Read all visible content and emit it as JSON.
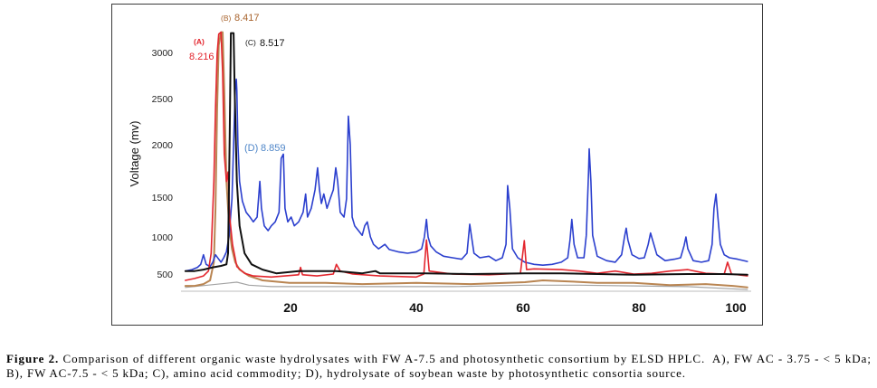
{
  "figure": {
    "caption": {
      "label": "Figure 2.",
      "line1": " Comparison of different organic waste hydrolysates with FW A-7.5 and photosynthetic consortium by ELSD HPLC.  A), FW AC - 3.75 - < 5 kDa;",
      "line2": "B), FW AC-7.5 - < 5 kDa; C), amino acid commodity; D), hydrolysate of soybean waste by photosynthetic consortia source."
    }
  },
  "chart_data": {
    "type": "line",
    "ylabel": "Voltage (mv)",
    "x_ticks": [
      20,
      40,
      60,
      80,
      100
    ],
    "y_ticks": [
      500,
      1000,
      1500,
      2000,
      2500,
      3000
    ],
    "xlim": [
      0,
      102.4
    ],
    "ylim": [
      270,
      3220
    ],
    "grid": false,
    "legend": "none",
    "series": [
      {
        "color": "#a3a3a3",
        "points": [
          [
            0.8,
            320
          ],
          [
            10.2,
            390
          ],
          [
            12.4,
            350
          ],
          [
            16.5,
            330
          ],
          [
            31.4,
            330
          ],
          [
            46.8,
            330
          ],
          [
            60.3,
            350
          ],
          [
            69.7,
            350
          ],
          [
            79.1,
            340
          ],
          [
            90.1,
            330
          ],
          [
            102.4,
            290
          ]
        ]
      },
      {
        "name": "(B)",
        "peak_label": "8.417",
        "color": "#b98552",
        "label_color": "#a9652f",
        "points": [
          [
            0.8,
            340
          ],
          [
            2.5,
            340
          ],
          [
            4.1,
            365
          ],
          [
            5.3,
            415
          ],
          [
            6.0,
            660
          ],
          [
            6.3,
            1360
          ],
          [
            6.6,
            2390
          ],
          [
            6.9,
            3080
          ],
          [
            7.3,
            3220
          ],
          [
            7.6,
            3220
          ],
          [
            7.9,
            2590
          ],
          [
            8.3,
            1650
          ],
          [
            8.8,
            1140
          ],
          [
            9.3,
            840
          ],
          [
            9.9,
            660
          ],
          [
            10.7,
            560
          ],
          [
            12.4,
            475
          ],
          [
            14.9,
            415
          ],
          [
            19.8,
            380
          ],
          [
            25.6,
            380
          ],
          [
            31.4,
            365
          ],
          [
            40.0,
            380
          ],
          [
            50.2,
            365
          ],
          [
            60.3,
            390
          ],
          [
            63.4,
            415
          ],
          [
            68.1,
            400
          ],
          [
            72.8,
            380
          ],
          [
            79.1,
            380
          ],
          [
            86.4,
            350
          ],
          [
            93.8,
            365
          ],
          [
            99.4,
            340
          ],
          [
            102.4,
            320
          ]
        ]
      },
      {
        "name": "(D)",
        "peak_label": "8.859",
        "color": "#2b3fce",
        "label_color": "#4f86c8",
        "points": [
          [
            0.8,
            540
          ],
          [
            2.0,
            560
          ],
          [
            3.0,
            590
          ],
          [
            3.6,
            630
          ],
          [
            4.1,
            760
          ],
          [
            4.6,
            630
          ],
          [
            5.3,
            600
          ],
          [
            5.8,
            660
          ],
          [
            6.3,
            760
          ],
          [
            6.8,
            710
          ],
          [
            7.3,
            660
          ],
          [
            7.8,
            720
          ],
          [
            8.3,
            800
          ],
          [
            8.8,
            1020
          ],
          [
            9.3,
            1480
          ],
          [
            9.6,
            2000
          ],
          [
            9.9,
            2590
          ],
          [
            10.1,
            2710
          ],
          [
            10.2,
            2590
          ],
          [
            10.4,
            2000
          ],
          [
            10.7,
            1650
          ],
          [
            11.2,
            1450
          ],
          [
            11.9,
            1310
          ],
          [
            12.6,
            1250
          ],
          [
            13.2,
            1190
          ],
          [
            13.9,
            1250
          ],
          [
            14.4,
            1650
          ],
          [
            14.7,
            1360
          ],
          [
            15.2,
            1140
          ],
          [
            15.9,
            1080
          ],
          [
            16.5,
            1140
          ],
          [
            17.2,
            1190
          ],
          [
            17.9,
            1310
          ],
          [
            18.3,
            1870
          ],
          [
            18.7,
            1910
          ],
          [
            19.0,
            1360
          ],
          [
            19.5,
            1190
          ],
          [
            20.1,
            1250
          ],
          [
            20.6,
            1140
          ],
          [
            21.3,
            1190
          ],
          [
            22.0,
            1310
          ],
          [
            22.4,
            1530
          ],
          [
            22.7,
            1250
          ],
          [
            23.3,
            1360
          ],
          [
            23.9,
            1570
          ],
          [
            24.3,
            1780
          ],
          [
            24.6,
            1570
          ],
          [
            24.9,
            1420
          ],
          [
            25.3,
            1530
          ],
          [
            25.8,
            1360
          ],
          [
            26.3,
            1480
          ],
          [
            26.8,
            1570
          ],
          [
            27.2,
            1780
          ],
          [
            27.5,
            1650
          ],
          [
            27.9,
            1310
          ],
          [
            28.5,
            1250
          ],
          [
            28.9,
            1480
          ],
          [
            29.2,
            2310
          ],
          [
            29.5,
            2000
          ],
          [
            29.8,
            1250
          ],
          [
            30.2,
            1140
          ],
          [
            30.8,
            1080
          ],
          [
            31.4,
            1020
          ],
          [
            31.8,
            1140
          ],
          [
            32.2,
            1190
          ],
          [
            32.7,
            1000
          ],
          [
            33.2,
            900
          ],
          [
            34.0,
            840
          ],
          [
            35.0,
            900
          ],
          [
            35.7,
            830
          ],
          [
            37.1,
            800
          ],
          [
            38.6,
            780
          ],
          [
            40.0,
            800
          ],
          [
            41.0,
            840
          ],
          [
            41.5,
            1000
          ],
          [
            41.9,
            1220
          ],
          [
            42.2,
            1000
          ],
          [
            42.7,
            880
          ],
          [
            43.7,
            800
          ],
          [
            45.1,
            740
          ],
          [
            46.8,
            720
          ],
          [
            48.5,
            700
          ],
          [
            49.5,
            780
          ],
          [
            50.0,
            1160
          ],
          [
            50.3,
            1020
          ],
          [
            50.8,
            780
          ],
          [
            51.9,
            720
          ],
          [
            53.6,
            740
          ],
          [
            54.9,
            680
          ],
          [
            56.1,
            720
          ],
          [
            56.8,
            900
          ],
          [
            57.1,
            1610
          ],
          [
            57.5,
            1360
          ],
          [
            58.0,
            840
          ],
          [
            59.0,
            720
          ],
          [
            60.3,
            660
          ],
          [
            61.9,
            630
          ],
          [
            63.4,
            620
          ],
          [
            65.0,
            630
          ],
          [
            66.6,
            660
          ],
          [
            67.7,
            720
          ],
          [
            68.1,
            960
          ],
          [
            68.4,
            1220
          ],
          [
            68.8,
            900
          ],
          [
            69.4,
            720
          ],
          [
            70.5,
            720
          ],
          [
            70.9,
            1020
          ],
          [
            71.3,
            1740
          ],
          [
            71.4,
            1960
          ],
          [
            71.7,
            1650
          ],
          [
            72.0,
            1020
          ],
          [
            72.8,
            740
          ],
          [
            74.4,
            680
          ],
          [
            75.9,
            660
          ],
          [
            77.0,
            760
          ],
          [
            77.5,
            1000
          ],
          [
            77.8,
            1110
          ],
          [
            78.1,
            960
          ],
          [
            78.8,
            760
          ],
          [
            80.0,
            710
          ],
          [
            81.1,
            720
          ],
          [
            81.9,
            900
          ],
          [
            82.4,
            1050
          ],
          [
            82.8,
            960
          ],
          [
            83.7,
            760
          ],
          [
            85.4,
            680
          ],
          [
            87.3,
            700
          ],
          [
            88.6,
            720
          ],
          [
            89.3,
            880
          ],
          [
            89.7,
            1000
          ],
          [
            90.1,
            840
          ],
          [
            91.2,
            680
          ],
          [
            92.9,
            660
          ],
          [
            94.4,
            680
          ],
          [
            95.1,
            900
          ],
          [
            95.5,
            1360
          ],
          [
            95.9,
            1530
          ],
          [
            96.3,
            1250
          ],
          [
            96.8,
            900
          ],
          [
            97.6,
            760
          ],
          [
            98.7,
            720
          ],
          [
            100.4,
            700
          ],
          [
            102.4,
            670
          ]
        ]
      },
      {
        "name": "(A)",
        "peak_label": "8.216",
        "color": "#e3262e",
        "label_color": "#e3262e",
        "points": [
          [
            0.8,
            415
          ],
          [
            2.5,
            440
          ],
          [
            4.1,
            475
          ],
          [
            5.0,
            540
          ],
          [
            5.5,
            780
          ],
          [
            6.0,
            1650
          ],
          [
            6.3,
            2390
          ],
          [
            6.6,
            2980
          ],
          [
            6.9,
            3200
          ],
          [
            7.3,
            3220
          ],
          [
            7.6,
            2780
          ],
          [
            7.9,
            1910
          ],
          [
            8.3,
            1650
          ],
          [
            8.6,
            1740
          ],
          [
            8.9,
            1250
          ],
          [
            9.4,
            900
          ],
          [
            10.2,
            600
          ],
          [
            11.6,
            510
          ],
          [
            13.2,
            475
          ],
          [
            16.5,
            460
          ],
          [
            21.3,
            490
          ],
          [
            21.6,
            590
          ],
          [
            21.9,
            490
          ],
          [
            24.2,
            475
          ],
          [
            26.8,
            500
          ],
          [
            27.3,
            630
          ],
          [
            27.9,
            540
          ],
          [
            29.9,
            500
          ],
          [
            34.2,
            475
          ],
          [
            40.0,
            460
          ],
          [
            41.4,
            500
          ],
          [
            41.9,
            960
          ],
          [
            42.4,
            540
          ],
          [
            46.8,
            500
          ],
          [
            53.6,
            490
          ],
          [
            59.5,
            510
          ],
          [
            60.2,
            950
          ],
          [
            60.6,
            560
          ],
          [
            61.9,
            570
          ],
          [
            66.6,
            560
          ],
          [
            69.7,
            540
          ],
          [
            72.8,
            510
          ],
          [
            75.9,
            540
          ],
          [
            79.1,
            500
          ],
          [
            82.6,
            510
          ],
          [
            86.4,
            540
          ],
          [
            90.1,
            560
          ],
          [
            93.8,
            510
          ],
          [
            97.6,
            500
          ],
          [
            98.3,
            660
          ],
          [
            99.1,
            500
          ],
          [
            102.4,
            475
          ]
        ]
      },
      {
        "name": "(C)",
        "peak_label": "8.517",
        "color": "#111111",
        "label_color": "#111111",
        "points": [
          [
            0.8,
            540
          ],
          [
            2.5,
            540
          ],
          [
            4.1,
            560
          ],
          [
            5.8,
            590
          ],
          [
            7.3,
            610
          ],
          [
            8.3,
            630
          ],
          [
            8.6,
            780
          ],
          [
            8.9,
            2100
          ],
          [
            9.1,
            3210
          ],
          [
            9.6,
            3210
          ],
          [
            9.8,
            2590
          ],
          [
            10.2,
            1650
          ],
          [
            10.7,
            1140
          ],
          [
            11.6,
            780
          ],
          [
            12.9,
            630
          ],
          [
            14.9,
            560
          ],
          [
            17.4,
            510
          ],
          [
            21.3,
            540
          ],
          [
            27.3,
            540
          ],
          [
            31.4,
            510
          ],
          [
            33.5,
            540
          ],
          [
            34.2,
            510
          ],
          [
            41.7,
            510
          ],
          [
            50.2,
            500
          ],
          [
            60.3,
            510
          ],
          [
            66.6,
            510
          ],
          [
            79.1,
            490
          ],
          [
            90.1,
            500
          ],
          [
            97.6,
            500
          ],
          [
            102.4,
            490
          ]
        ]
      }
    ]
  }
}
